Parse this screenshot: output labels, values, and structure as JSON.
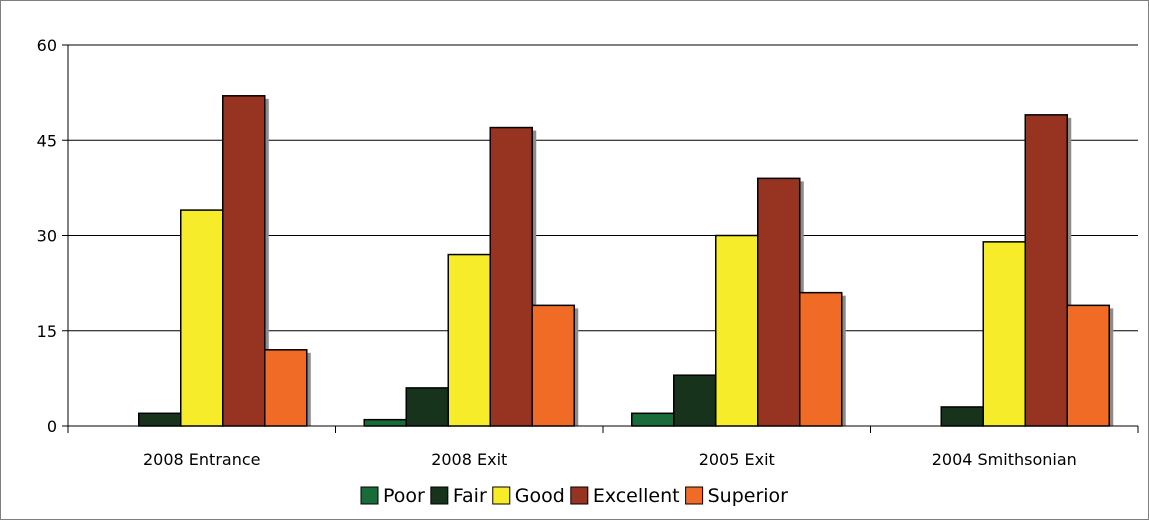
{
  "chart_data": {
    "type": "bar",
    "title": "",
    "xlabel": "",
    "ylabel": "",
    "categories": [
      "2008 Entrance",
      "2008 Exit",
      "2005 Exit",
      "2004 Smithsonian"
    ],
    "series": [
      {
        "name": "Poor",
        "color": "#1a6b3a",
        "values": [
          0,
          1,
          2,
          0
        ]
      },
      {
        "name": "Fair",
        "color": "#17331c",
        "values": [
          2,
          6,
          8,
          3
        ]
      },
      {
        "name": "Good",
        "color": "#f7ec2a",
        "values": [
          34,
          27,
          30,
          29
        ]
      },
      {
        "name": "Excellent",
        "color": "#973421",
        "values": [
          52,
          47,
          39,
          49
        ]
      },
      {
        "name": "Superior",
        "color": "#f06b25",
        "values": [
          12,
          19,
          21,
          19
        ]
      }
    ],
    "ylim": [
      0,
      60
    ],
    "yticks": [
      0,
      15,
      30,
      45,
      60
    ],
    "grid": true,
    "legend_position": "bottom"
  }
}
